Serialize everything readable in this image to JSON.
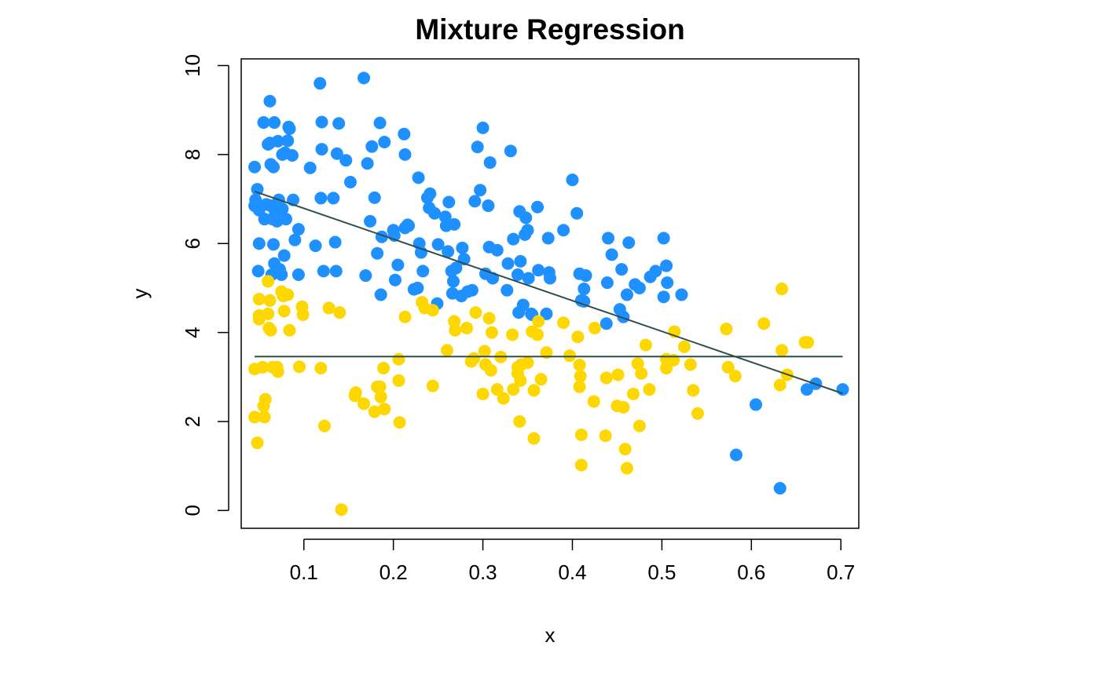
{
  "chart_data": {
    "type": "scatter",
    "title": "Mixture Regression",
    "xlabel": "x",
    "ylabel": "y",
    "xlim": [
      0.03,
      0.72
    ],
    "ylim": [
      -0.4,
      10.15
    ],
    "x_ticks": [
      0.1,
      0.2,
      0.3,
      0.4,
      0.5,
      0.6,
      0.7
    ],
    "x_tick_labels": [
      "0.1",
      "0.2",
      "0.3",
      "0.4",
      "0.5",
      "0.6",
      "0.7"
    ],
    "y_ticks": [
      0,
      2,
      4,
      6,
      8,
      10
    ],
    "y_tick_labels": [
      "0",
      "2",
      "4",
      "6",
      "8",
      "10"
    ],
    "grid": false,
    "series": [
      {
        "color": "#1E90FF",
        "points": [
          [
            0.045,
            7.72
          ],
          [
            0.045,
            6.85
          ],
          [
            0.046,
            6.98
          ],
          [
            0.048,
            7.22
          ],
          [
            0.049,
            5.38
          ],
          [
            0.05,
            6.75
          ],
          [
            0.05,
            6.0
          ],
          [
            0.055,
            8.72
          ],
          [
            0.056,
            6.55
          ],
          [
            0.058,
            6.88
          ],
          [
            0.06,
            8.23
          ],
          [
            0.062,
            8.26
          ],
          [
            0.062,
            9.2
          ],
          [
            0.063,
            6.85
          ],
          [
            0.063,
            7.78
          ],
          [
            0.064,
            5.3
          ],
          [
            0.065,
            6.55
          ],
          [
            0.066,
            5.98
          ],
          [
            0.066,
            7.72
          ],
          [
            0.067,
            8.72
          ],
          [
            0.067,
            5.55
          ],
          [
            0.068,
            6.7
          ],
          [
            0.07,
            6.5
          ],
          [
            0.071,
            8.3
          ],
          [
            0.072,
            6.98
          ],
          [
            0.072,
            6.8
          ],
          [
            0.073,
            5.42
          ],
          [
            0.075,
            5.3
          ],
          [
            0.076,
            8.0
          ],
          [
            0.076,
            6.78
          ],
          [
            0.078,
            5.73
          ],
          [
            0.079,
            8.04
          ],
          [
            0.08,
            6.55
          ],
          [
            0.082,
            8.31
          ],
          [
            0.083,
            8.62
          ],
          [
            0.084,
            8.58
          ],
          [
            0.087,
            7.98
          ],
          [
            0.088,
            6.98
          ],
          [
            0.09,
            6.08
          ],
          [
            0.094,
            6.32
          ],
          [
            0.094,
            5.3
          ],
          [
            0.107,
            7.7
          ],
          [
            0.113,
            5.95
          ],
          [
            0.118,
            9.6
          ],
          [
            0.119,
            7.02
          ],
          [
            0.12,
            8.73
          ],
          [
            0.12,
            8.12
          ],
          [
            0.122,
            5.38
          ],
          [
            0.133,
            7.02
          ],
          [
            0.135,
            6.03
          ],
          [
            0.136,
            5.38
          ],
          [
            0.137,
            8.02
          ],
          [
            0.139,
            8.7
          ],
          [
            0.147,
            7.87
          ],
          [
            0.152,
            7.38
          ],
          [
            0.167,
            9.72
          ],
          [
            0.169,
            5.28
          ],
          [
            0.171,
            7.8
          ],
          [
            0.174,
            6.5
          ],
          [
            0.176,
            8.18
          ],
          [
            0.179,
            7.03
          ],
          [
            0.182,
            5.78
          ],
          [
            0.185,
            8.71
          ],
          [
            0.186,
            4.85
          ],
          [
            0.187,
            6.15
          ],
          [
            0.19,
            8.28
          ],
          [
            0.2,
            6.3
          ],
          [
            0.201,
            6.18
          ],
          [
            0.202,
            5.18
          ],
          [
            0.205,
            5.52
          ],
          [
            0.212,
            8.46
          ],
          [
            0.213,
            8.0
          ],
          [
            0.213,
            6.35
          ],
          [
            0.216,
            6.42
          ],
          [
            0.217,
            6.4
          ],
          [
            0.223,
            4.97
          ],
          [
            0.227,
            5.0
          ],
          [
            0.228,
            7.48
          ],
          [
            0.229,
            6.0
          ],
          [
            0.231,
            5.8
          ],
          [
            0.233,
            5.38
          ],
          [
            0.238,
            7.03
          ],
          [
            0.24,
            6.8
          ],
          [
            0.241,
            7.12
          ],
          [
            0.246,
            6.68
          ],
          [
            0.249,
            4.65
          ],
          [
            0.25,
            5.98
          ],
          [
            0.258,
            6.6
          ],
          [
            0.259,
            6.4
          ],
          [
            0.261,
            5.82
          ],
          [
            0.262,
            6.93
          ],
          [
            0.265,
            5.38
          ],
          [
            0.266,
            4.88
          ],
          [
            0.267,
            5.15
          ],
          [
            0.268,
            6.43
          ],
          [
            0.27,
            5.45
          ],
          [
            0.276,
            4.82
          ],
          [
            0.277,
            5.9
          ],
          [
            0.279,
            5.65
          ],
          [
            0.283,
            4.92
          ],
          [
            0.288,
            4.95
          ],
          [
            0.291,
            6.95
          ],
          [
            0.294,
            8.17
          ],
          [
            0.297,
            7.2
          ],
          [
            0.3,
            8.6
          ],
          [
            0.303,
            5.32
          ],
          [
            0.306,
            6.85
          ],
          [
            0.307,
            5.92
          ],
          [
            0.308,
            7.82
          ],
          [
            0.311,
            5.22
          ],
          [
            0.316,
            5.85
          ],
          [
            0.327,
            4.95
          ],
          [
            0.328,
            5.55
          ],
          [
            0.331,
            8.08
          ],
          [
            0.334,
            6.1
          ],
          [
            0.339,
            5.3
          ],
          [
            0.34,
            4.45
          ],
          [
            0.341,
            6.72
          ],
          [
            0.342,
            5.6
          ],
          [
            0.345,
            4.62
          ],
          [
            0.347,
            6.2
          ],
          [
            0.348,
            6.58
          ],
          [
            0.35,
            6.3
          ],
          [
            0.351,
            5.22
          ],
          [
            0.354,
            4.42
          ],
          [
            0.355,
            4.4
          ],
          [
            0.361,
            6.82
          ],
          [
            0.362,
            5.4
          ],
          [
            0.371,
            4.42
          ],
          [
            0.373,
            6.12
          ],
          [
            0.374,
            5.35
          ],
          [
            0.375,
            5.22
          ],
          [
            0.39,
            6.3
          ],
          [
            0.4,
            7.43
          ],
          [
            0.405,
            6.68
          ],
          [
            0.408,
            5.32
          ],
          [
            0.41,
            4.72
          ],
          [
            0.413,
            4.98
          ],
          [
            0.413,
            4.7
          ],
          [
            0.415,
            5.28
          ],
          [
            0.438,
            4.2
          ],
          [
            0.439,
            5.12
          ],
          [
            0.44,
            6.12
          ],
          [
            0.444,
            5.75
          ],
          [
            0.453,
            4.52
          ],
          [
            0.455,
            5.42
          ],
          [
            0.457,
            4.35
          ],
          [
            0.461,
            4.85
          ],
          [
            0.463,
            6.02
          ],
          [
            0.47,
            5.08
          ],
          [
            0.475,
            5.0
          ],
          [
            0.487,
            5.25
          ],
          [
            0.493,
            5.38
          ],
          [
            0.502,
            4.8
          ],
          [
            0.502,
            6.12
          ],
          [
            0.505,
            5.5
          ],
          [
            0.506,
            5.12
          ],
          [
            0.522,
            4.85
          ],
          [
            0.583,
            1.25
          ],
          [
            0.605,
            2.38
          ],
          [
            0.632,
            0.5
          ],
          [
            0.662,
            2.72
          ],
          [
            0.672,
            2.85
          ],
          [
            0.702,
            2.72
          ]
        ]
      },
      {
        "color": "#FFD700",
        "points": [
          [
            0.045,
            2.1
          ],
          [
            0.045,
            3.18
          ],
          [
            0.048,
            1.52
          ],
          [
            0.05,
            4.75
          ],
          [
            0.05,
            4.38
          ],
          [
            0.05,
            4.3
          ],
          [
            0.054,
            3.22
          ],
          [
            0.055,
            2.35
          ],
          [
            0.056,
            2.1
          ],
          [
            0.057,
            2.5
          ],
          [
            0.06,
            4.42
          ],
          [
            0.06,
            5.15
          ],
          [
            0.061,
            4.1
          ],
          [
            0.062,
            4.72
          ],
          [
            0.063,
            4.05
          ],
          [
            0.065,
            3.22
          ],
          [
            0.07,
            3.22
          ],
          [
            0.071,
            3.12
          ],
          [
            0.075,
            4.92
          ],
          [
            0.077,
            4.82
          ],
          [
            0.078,
            4.48
          ],
          [
            0.082,
            4.85
          ],
          [
            0.084,
            4.05
          ],
          [
            0.095,
            3.23
          ],
          [
            0.098,
            4.58
          ],
          [
            0.099,
            4.4
          ],
          [
            0.119,
            3.2
          ],
          [
            0.123,
            1.9
          ],
          [
            0.128,
            4.55
          ],
          [
            0.14,
            4.45
          ],
          [
            0.142,
            0.02
          ],
          [
            0.157,
            2.58
          ],
          [
            0.158,
            2.65
          ],
          [
            0.167,
            2.4
          ],
          [
            0.179,
            2.22
          ],
          [
            0.182,
            2.78
          ],
          [
            0.185,
            2.78
          ],
          [
            0.186,
            2.55
          ],
          [
            0.189,
            3.2
          ],
          [
            0.19,
            2.28
          ],
          [
            0.206,
            3.4
          ],
          [
            0.206,
            2.92
          ],
          [
            0.207,
            1.98
          ],
          [
            0.213,
            4.35
          ],
          [
            0.232,
            4.68
          ],
          [
            0.235,
            4.55
          ],
          [
            0.244,
            4.5
          ],
          [
            0.244,
            2.8
          ],
          [
            0.26,
            3.6
          ],
          [
            0.268,
            4.25
          ],
          [
            0.269,
            4.05
          ],
          [
            0.282,
            4.1
          ],
          [
            0.287,
            3.35
          ],
          [
            0.29,
            3.42
          ],
          [
            0.292,
            4.45
          ],
          [
            0.3,
            2.62
          ],
          [
            0.302,
            3.58
          ],
          [
            0.303,
            3.28
          ],
          [
            0.307,
            4.32
          ],
          [
            0.309,
            3.15
          ],
          [
            0.31,
            4.0
          ],
          [
            0.316,
            2.72
          ],
          [
            0.32,
            3.45
          ],
          [
            0.323,
            2.52
          ],
          [
            0.333,
            3.95
          ],
          [
            0.334,
            2.72
          ],
          [
            0.339,
            3.22
          ],
          [
            0.339,
            3.08
          ],
          [
            0.341,
            2.0
          ],
          [
            0.342,
            2.92
          ],
          [
            0.343,
            3.28
          ],
          [
            0.35,
            3.32
          ],
          [
            0.355,
            4.02
          ],
          [
            0.357,
            2.7
          ],
          [
            0.357,
            1.62
          ],
          [
            0.361,
            3.95
          ],
          [
            0.362,
            4.25
          ],
          [
            0.365,
            2.95
          ],
          [
            0.371,
            3.55
          ],
          [
            0.39,
            4.22
          ],
          [
            0.397,
            3.48
          ],
          [
            0.406,
            3.9
          ],
          [
            0.408,
            3.27
          ],
          [
            0.408,
            2.78
          ],
          [
            0.409,
            3.02
          ],
          [
            0.41,
            1.7
          ],
          [
            0.41,
            1.02
          ],
          [
            0.424,
            2.45
          ],
          [
            0.425,
            4.1
          ],
          [
            0.437,
            1.68
          ],
          [
            0.438,
            2.98
          ],
          [
            0.45,
            2.35
          ],
          [
            0.451,
            3.05
          ],
          [
            0.457,
            2.32
          ],
          [
            0.459,
            1.38
          ],
          [
            0.461,
            0.95
          ],
          [
            0.468,
            2.62
          ],
          [
            0.473,
            3.3
          ],
          [
            0.475,
            1.9
          ],
          [
            0.477,
            3.08
          ],
          [
            0.482,
            3.72
          ],
          [
            0.486,
            2.72
          ],
          [
            0.505,
            3.4
          ],
          [
            0.505,
            3.2
          ],
          [
            0.513,
            3.38
          ],
          [
            0.514,
            4.02
          ],
          [
            0.525,
            3.68
          ],
          [
            0.532,
            3.28
          ],
          [
            0.535,
            2.7
          ],
          [
            0.54,
            2.18
          ],
          [
            0.572,
            4.08
          ],
          [
            0.574,
            3.22
          ],
          [
            0.582,
            3.02
          ],
          [
            0.614,
            4.2
          ],
          [
            0.632,
            2.82
          ],
          [
            0.634,
            3.6
          ],
          [
            0.634,
            4.98
          ],
          [
            0.64,
            3.05
          ],
          [
            0.66,
            3.78
          ],
          [
            0.663,
            3.78
          ]
        ]
      }
    ],
    "lines": [
      {
        "color": "#2F4F4F",
        "x": [
          0.045,
          0.702
        ],
        "y": [
          7.17,
          2.63
        ]
      },
      {
        "color": "#2F4F4F",
        "x": [
          0.045,
          0.702
        ],
        "y": [
          3.46,
          3.46
        ]
      }
    ]
  }
}
